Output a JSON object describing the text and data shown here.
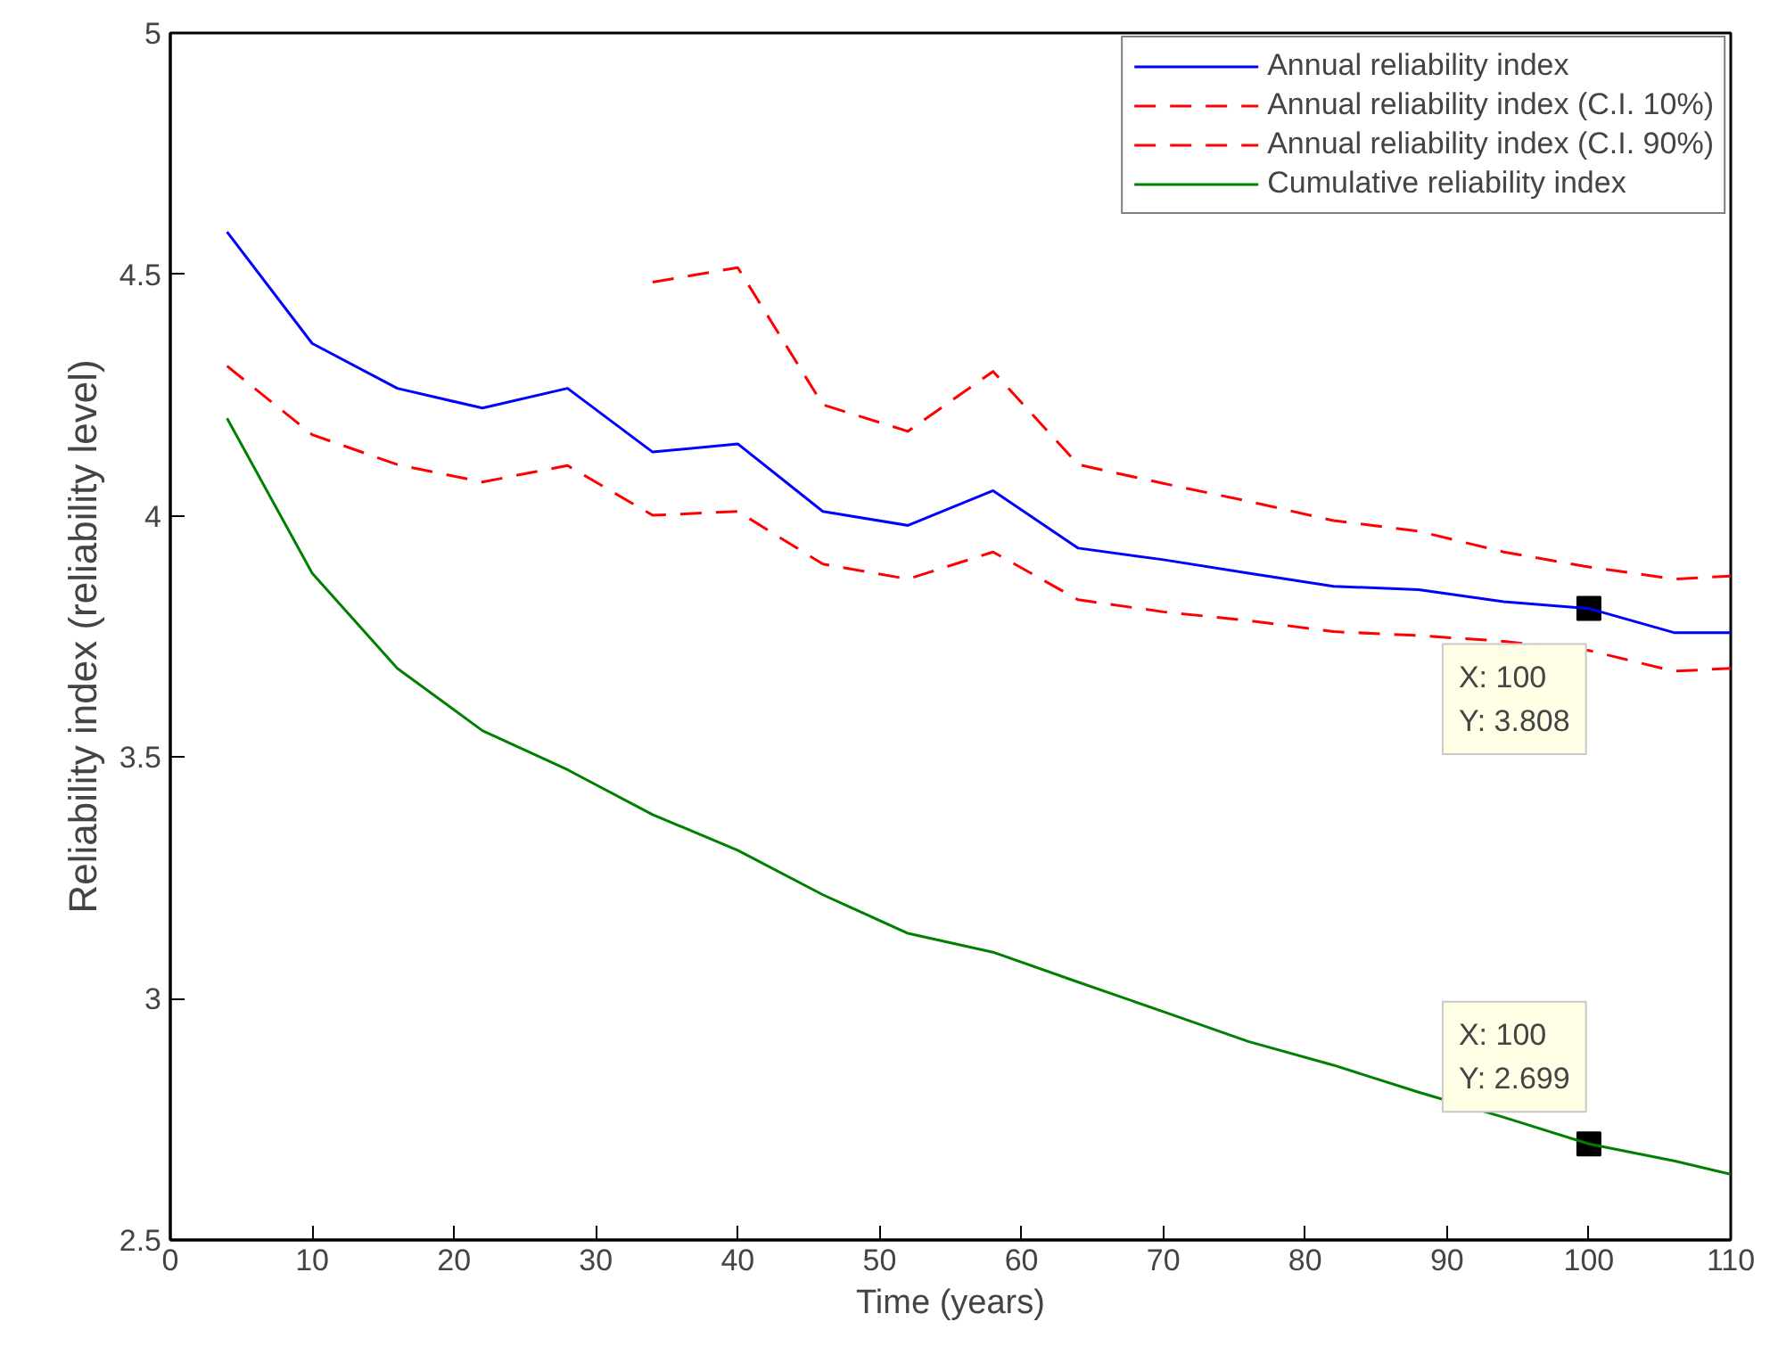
{
  "chart_data": {
    "type": "line",
    "xlabel": "Time (years)",
    "ylabel": "Reliability index (reliability level)",
    "xlim": [
      0,
      110
    ],
    "ylim": [
      2.5,
      5
    ],
    "xticks": [
      0,
      10,
      20,
      30,
      40,
      50,
      60,
      70,
      80,
      90,
      100,
      110
    ],
    "yticks": [
      2.5,
      3,
      3.5,
      4,
      4.5,
      5
    ],
    "grid": false,
    "legend": "top right",
    "marker": "none",
    "x": [
      4,
      10,
      16,
      22,
      28,
      34,
      40,
      46,
      52,
      58,
      64,
      70,
      76,
      82,
      88,
      94,
      100,
      106,
      110
    ],
    "series": [
      {
        "name": "Annual reliability index",
        "color": "#0000ff",
        "line_style": "solid",
        "values": [
          4.588,
          4.357,
          4.264,
          4.223,
          4.264,
          4.132,
          4.149,
          4.009,
          3.98,
          4.052,
          3.933,
          3.909,
          3.881,
          3.854,
          3.847,
          3.822,
          3.808,
          3.758,
          3.758
        ]
      },
      {
        "name": "Annual reliability index (C.I. 10%)",
        "color": "#ff0000",
        "line_style": "dashed",
        "values": [
          4.31,
          4.168,
          4.106,
          4.07,
          4.104,
          4.001,
          4.009,
          3.9,
          3.869,
          3.925,
          3.826,
          3.801,
          3.783,
          3.76,
          3.752,
          3.74,
          3.721,
          3.678,
          3.684
        ]
      },
      {
        "name": "Annual reliability index (C.I. 90%)",
        "color": "#ff0000",
        "line_style": "dashed",
        "values": [
          null,
          null,
          null,
          null,
          null,
          4.484,
          4.514,
          4.23,
          4.175,
          4.299,
          4.106,
          4.067,
          4.03,
          3.99,
          3.968,
          3.925,
          3.894,
          3.869,
          3.875
        ]
      },
      {
        "name": "Cumulative reliability index",
        "color": "#008000",
        "line_style": "solid",
        "values": [
          4.202,
          3.881,
          3.684,
          3.555,
          3.474,
          3.381,
          3.307,
          3.215,
          3.135,
          3.096,
          3.034,
          2.973,
          2.911,
          2.862,
          2.806,
          2.754,
          2.699,
          2.664,
          2.636
        ]
      }
    ],
    "annotations": [
      {
        "text": "X: 100\nY: 3.808",
        "x": 100,
        "y": 3.808
      },
      {
        "text": "X: 100\nY: 2.699",
        "x": 100,
        "y": 2.699
      }
    ]
  }
}
